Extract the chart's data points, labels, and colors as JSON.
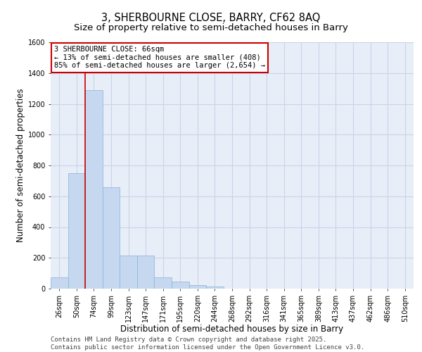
{
  "title_line1": "3, SHERBOURNE CLOSE, BARRY, CF62 8AQ",
  "title_line2": "Size of property relative to semi-detached houses in Barry",
  "xlabel": "Distribution of semi-detached houses by size in Barry",
  "ylabel": "Number of semi-detached properties",
  "categories": [
    "26sqm",
    "50sqm",
    "74sqm",
    "99sqm",
    "123sqm",
    "147sqm",
    "171sqm",
    "195sqm",
    "220sqm",
    "244sqm",
    "268sqm",
    "292sqm",
    "316sqm",
    "341sqm",
    "365sqm",
    "389sqm",
    "413sqm",
    "437sqm",
    "462sqm",
    "486sqm",
    "510sqm"
  ],
  "values": [
    75,
    750,
    1290,
    660,
    215,
    215,
    75,
    45,
    25,
    15,
    0,
    0,
    0,
    0,
    0,
    0,
    0,
    0,
    0,
    0,
    0
  ],
  "bar_color": "#c5d8f0",
  "bar_edge_color": "#8ab0d8",
  "grid_color": "#c8d4e8",
  "background_color": "#e8eef8",
  "vline_color": "#cc0000",
  "annotation_text": "3 SHERBOURNE CLOSE: 66sqm\n← 13% of semi-detached houses are smaller (408)\n85% of semi-detached houses are larger (2,654) →",
  "annotation_box_color": "#cc0000",
  "ylim": [
    0,
    1600
  ],
  "yticks": [
    0,
    200,
    400,
    600,
    800,
    1000,
    1200,
    1400,
    1600
  ],
  "footer_text": "Contains HM Land Registry data © Crown copyright and database right 2025.\nContains public sector information licensed under the Open Government Licence v3.0.",
  "title_fontsize": 10.5,
  "subtitle_fontsize": 9.5,
  "axis_label_fontsize": 8.5,
  "tick_fontsize": 7,
  "annotation_fontsize": 7.5,
  "footer_fontsize": 6.5
}
